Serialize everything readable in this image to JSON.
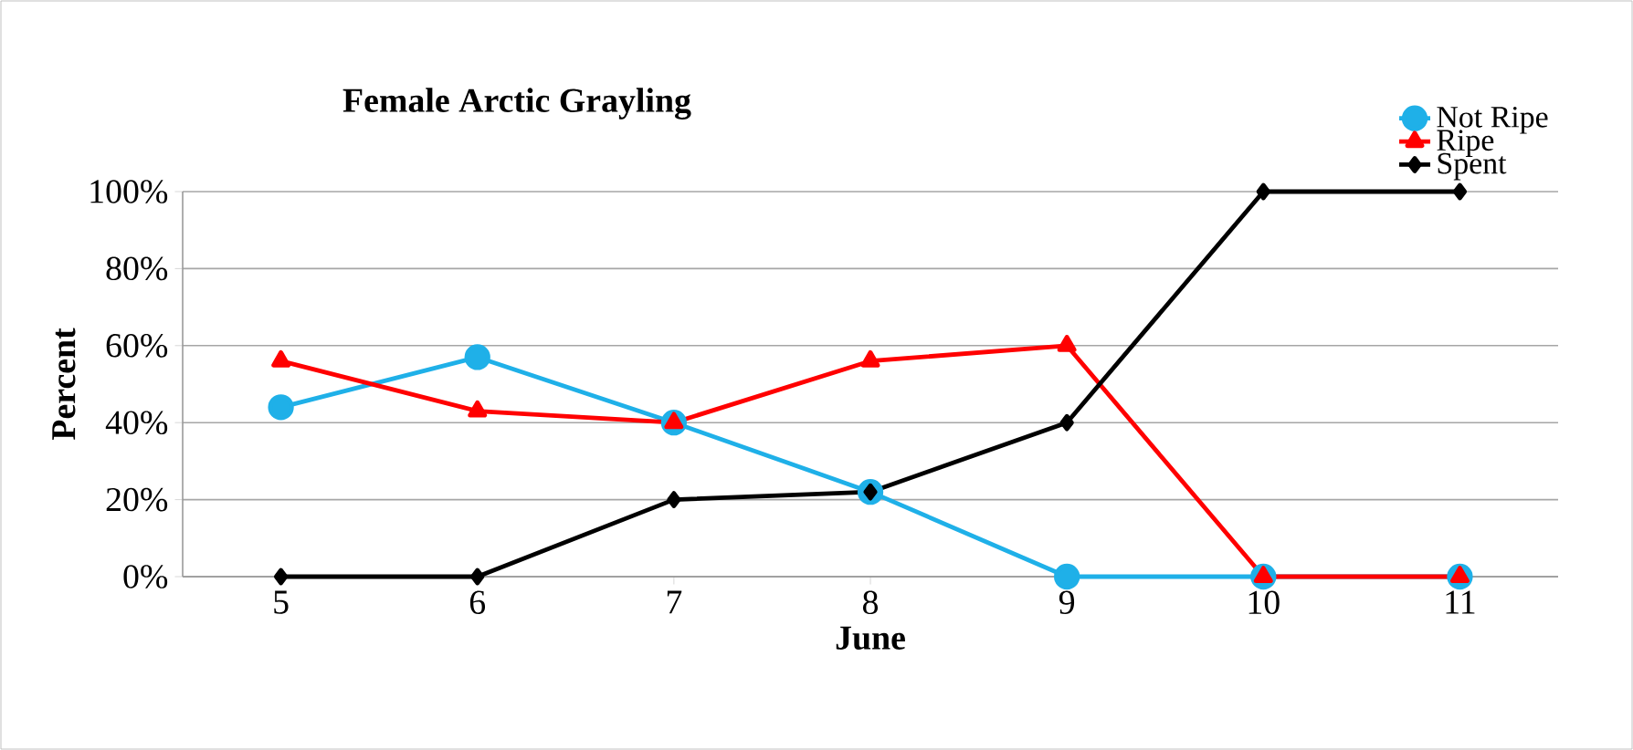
{
  "chart_data": {
    "type": "line",
    "title": "Female Arctic Grayling",
    "xlabel": "June",
    "ylabel": "Percent",
    "categories": [
      "5",
      "6",
      "7",
      "8",
      "9",
      "10",
      "11"
    ],
    "series": [
      {
        "name": "Not Ripe",
        "color": "#1fb0e8",
        "marker": "circle",
        "values": [
          44,
          57,
          40,
          22,
          0,
          0,
          0
        ]
      },
      {
        "name": "Ripe",
        "color": "#ff0000",
        "marker": "triangle",
        "values": [
          56,
          43,
          40,
          56,
          60,
          0,
          0
        ]
      },
      {
        "name": "Spent",
        "color": "#000000",
        "marker": "diamond",
        "values": [
          0,
          0,
          20,
          22,
          40,
          100,
          100
        ]
      }
    ],
    "ylim": [
      0,
      100
    ],
    "yticks": [
      {
        "value": 0,
        "label": "0%"
      },
      {
        "value": 20,
        "label": "20%"
      },
      {
        "value": 40,
        "label": "40%"
      },
      {
        "value": 60,
        "label": "60%"
      },
      {
        "value": 80,
        "label": "80%"
      },
      {
        "value": 100,
        "label": "100%"
      }
    ],
    "grid": "y",
    "legend": "top right",
    "line_style": "solid"
  }
}
